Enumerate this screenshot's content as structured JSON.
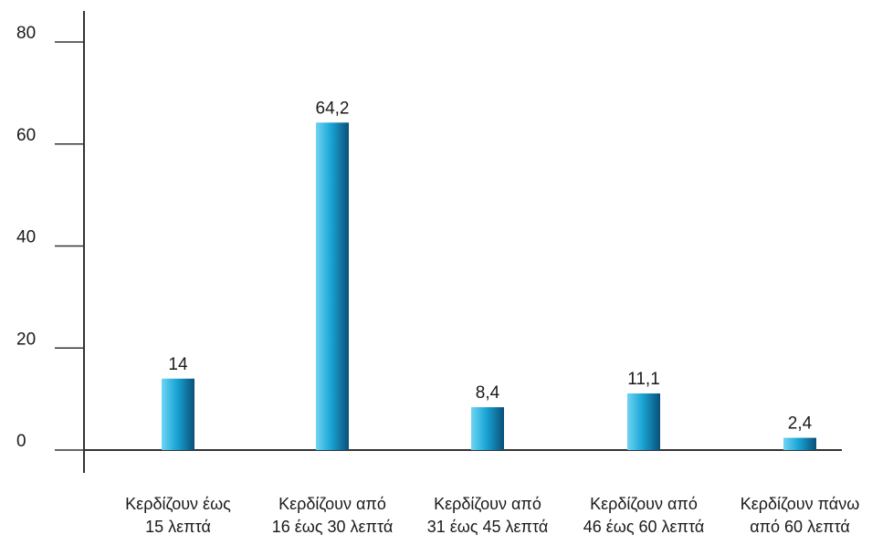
{
  "chart_data": {
    "type": "bar",
    "title": "",
    "xlabel": "",
    "ylabel": "",
    "ylim": [
      0,
      80
    ],
    "yticks": [
      0,
      20,
      40,
      60,
      80
    ],
    "ytick_labels": [
      "0",
      "20",
      "40",
      "60",
      "80"
    ],
    "grid": false,
    "legend": "none",
    "categories": [
      [
        "Κερδίζουν έως",
        "15 λεπτά"
      ],
      [
        "Κερδίζουν από",
        "16 έως 30 λεπτά"
      ],
      [
        "Κερδίζουν από",
        "31 έως 45 λεπτά"
      ],
      [
        "Κερδίζουν από",
        "46 έως 60 λεπτά"
      ],
      [
        "Κερδίζουν πάνω",
        "από 60 λεπτά"
      ]
    ],
    "values": [
      14,
      64.2,
      8.4,
      11.1,
      2.4
    ],
    "value_labels": [
      "14",
      "64,2",
      "8,4",
      "11,1",
      "2,4"
    ],
    "colors": {
      "bar_light": "#6fd4f2",
      "bar_mid": "#1aa6d6",
      "bar_dark": "#0a4f78",
      "axis": "#333333"
    }
  }
}
